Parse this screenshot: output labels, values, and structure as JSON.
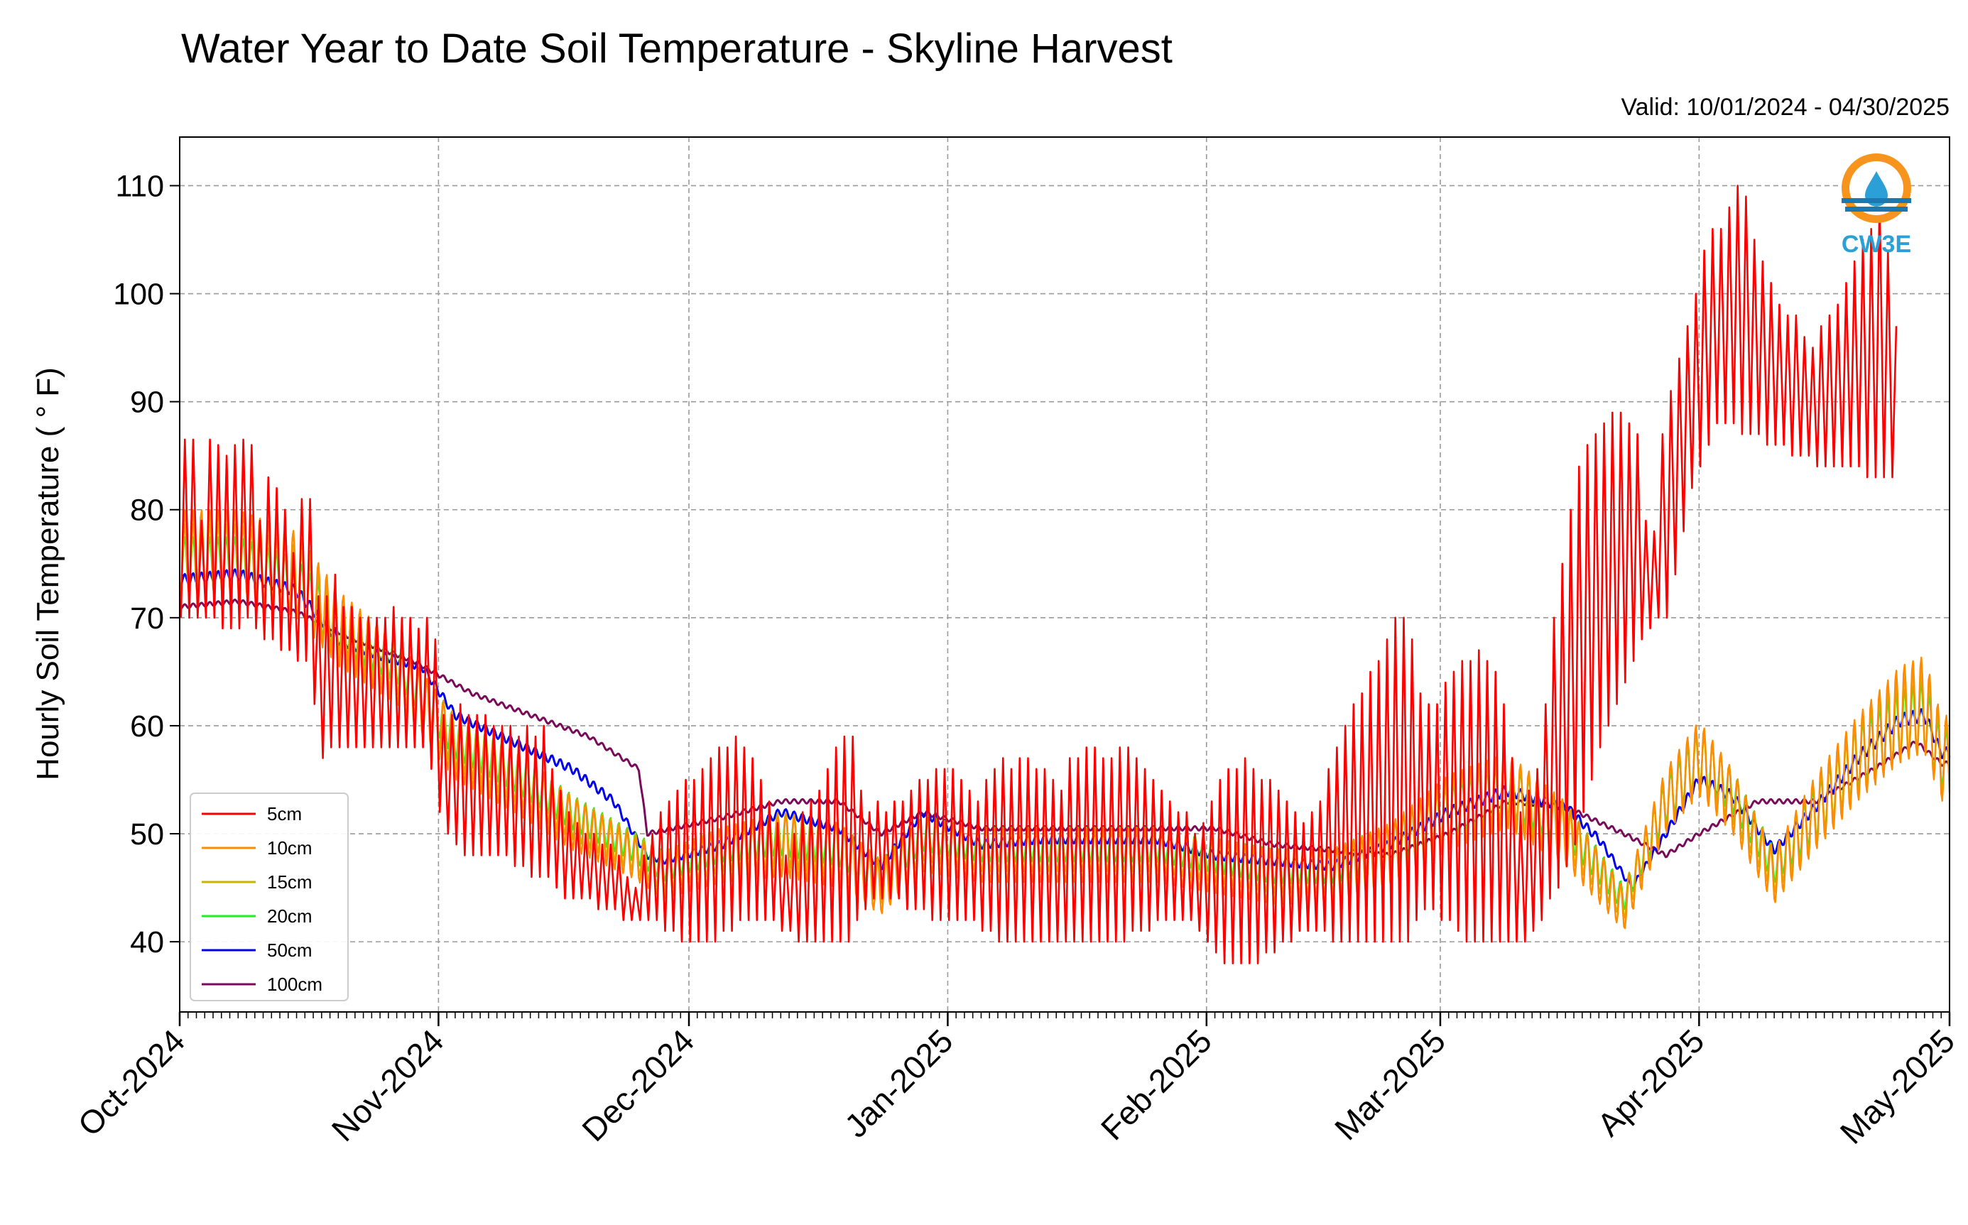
{
  "chart_data": {
    "type": "line",
    "title": "Water Year to Date Soil Temperature - Skyline Harvest",
    "subtitle": "Valid: 10/01/2024 - 04/30/2025",
    "xlabel": "",
    "ylabel": "Hourly Soil Temperature ( ° F)",
    "xlim": [
      "2024-10-01",
      "2025-05-01"
    ],
    "ylim": [
      33.5,
      114.5
    ],
    "yticks": [
      40,
      50,
      60,
      70,
      80,
      90,
      100,
      110
    ],
    "xticks": [
      {
        "date": "2024-10-01",
        "label": "Oct-2024"
      },
      {
        "date": "2024-11-01",
        "label": "Nov-2024"
      },
      {
        "date": "2024-12-01",
        "label": "Dec-2024"
      },
      {
        "date": "2025-01-01",
        "label": "Jan-2025"
      },
      {
        "date": "2025-02-01",
        "label": "Feb-2025"
      },
      {
        "date": "2025-03-01",
        "label": "Mar-2025"
      },
      {
        "date": "2025-04-01",
        "label": "Apr-2025"
      },
      {
        "date": "2025-05-01",
        "label": "May-2025"
      }
    ],
    "grid": true,
    "legend_position": "lower-left",
    "logo_text": "CW3E",
    "series": [
      {
        "name": "5cm",
        "color": "#ff0000",
        "daily_max": [
          86.5,
          86.5,
          79.0,
          86.5,
          86.0,
          85.0,
          86.0,
          86.5,
          86.0,
          79.0,
          83.0,
          82.0,
          80.0,
          76.0,
          81.0,
          81.0,
          72.0,
          72.0,
          74.0,
          71.0,
          71.0,
          70.0,
          70.0,
          70.0,
          70.0,
          71.0,
          70.0,
          70.0,
          69.0,
          70.0,
          68.0,
          61.0,
          61.0,
          62.0,
          61.0,
          61.0,
          61.0,
          60.0,
          60.0,
          60.0,
          59.0,
          60.0,
          59.0,
          60.0,
          56.0,
          54.0,
          52.0,
          51.0,
          50.0,
          50.0,
          49.0,
          49.0,
          48.0,
          46.0,
          45.0,
          48.0,
          50.0,
          52.0,
          53.0,
          54.0,
          55.0,
          55.0,
          56.0,
          57.0,
          58.0,
          58.0,
          59.0,
          58.0,
          57.0,
          55.0,
          53.0,
          51.0,
          48.0,
          50.0,
          52.0,
          53.0,
          54.0,
          56.0,
          58.0,
          59.0,
          59.0,
          54.0,
          52.0,
          53.0,
          52.0,
          53.0,
          53.0,
          54.0,
          55.0,
          55.0,
          56.0,
          56.0,
          56.0,
          55.0,
          54.0,
          53.0,
          55.0,
          56.0,
          57.0,
          56.0,
          57.0,
          57.0,
          56.0,
          56.0,
          55.0,
          54.0,
          57.0,
          57.0,
          58.0,
          58.0,
          57.0,
          57.0,
          58.0,
          58.0,
          57.0,
          56.0,
          55.0,
          54.0,
          53.0,
          52.0,
          52.0,
          50.0,
          51.0,
          53.0,
          55.0,
          56.0,
          56.0,
          57.0,
          56.0,
          55.0,
          55.0,
          54.0,
          53.0,
          52.0,
          51.0,
          52.0,
          53.0,
          56.0,
          58.0,
          60.0,
          62.0,
          63.0,
          65.0,
          66.0,
          68.0,
          70.0,
          70.0,
          68.0,
          63.0,
          62.0,
          62.0,
          64.0,
          65.0,
          66.0,
          66.0,
          67.0,
          66.0,
          65.0,
          62.0,
          57.0,
          52.0,
          54.0,
          56.0,
          62.0,
          70.0,
          75.0,
          80.0,
          84.0,
          86.0,
          87.0,
          88.0,
          89.0,
          89.0,
          88.0,
          87.0,
          79.0,
          78.0,
          87.0,
          91.0,
          94.0,
          97.0,
          100.0,
          104.0,
          106.0,
          106.0,
          108.0,
          110.0,
          109.0,
          105.0,
          103.0,
          101.0,
          99.0,
          98.0,
          98.0,
          96.0,
          95.0,
          97.0,
          98.0,
          99.0,
          101.0,
          103.0,
          105.0,
          106.0,
          109.0,
          104.0,
          97.0
        ],
        "daily_min": [
          70.0,
          70.0,
          70.0,
          70.0,
          70.0,
          69.0,
          69.0,
          69.0,
          70.0,
          69.0,
          68.0,
          68.0,
          67.0,
          67.0,
          66.0,
          66.0,
          62.0,
          57.0,
          58.0,
          58.0,
          58.0,
          58.0,
          58.0,
          58.0,
          58.0,
          58.0,
          58.0,
          58.0,
          58.0,
          58.0,
          56.0,
          52.0,
          50.0,
          49.0,
          48.0,
          48.0,
          48.0,
          48.0,
          48.0,
          48.0,
          47.0,
          47.0,
          46.0,
          46.0,
          46.0,
          45.0,
          44.0,
          44.0,
          44.0,
          44.0,
          43.0,
          43.0,
          43.0,
          42.0,
          42.0,
          42.0,
          42.0,
          42.0,
          41.0,
          41.0,
          40.0,
          40.0,
          40.0,
          40.0,
          40.0,
          41.0,
          41.0,
          42.0,
          42.0,
          42.0,
          42.0,
          42.0,
          41.0,
          41.0,
          40.0,
          40.0,
          40.0,
          40.0,
          40.0,
          40.0,
          40.0,
          42.0,
          43.0,
          44.0,
          44.0,
          44.0,
          44.0,
          43.0,
          43.0,
          43.0,
          42.0,
          42.0,
          42.0,
          42.0,
          42.0,
          42.0,
          41.0,
          41.0,
          40.0,
          40.0,
          40.0,
          40.0,
          40.0,
          40.0,
          40.0,
          40.0,
          40.0,
          40.0,
          40.0,
          40.0,
          40.0,
          40.0,
          40.0,
          40.0,
          41.0,
          41.0,
          41.0,
          42.0,
          42.0,
          42.0,
          42.0,
          42.0,
          41.0,
          40.0,
          39.0,
          38.0,
          38.0,
          38.0,
          38.0,
          38.0,
          39.0,
          39.0,
          40.0,
          40.0,
          41.0,
          41.0,
          41.0,
          41.0,
          40.0,
          40.0,
          40.0,
          40.0,
          40.0,
          40.0,
          40.0,
          40.0,
          40.0,
          40.0,
          42.0,
          43.0,
          43.0,
          42.0,
          42.0,
          41.0,
          40.0,
          40.0,
          40.0,
          40.0,
          40.0,
          40.0,
          40.0,
          40.0,
          41.0,
          42.0,
          44.0,
          45.0,
          47.0,
          49.0,
          52.0,
          55.0,
          58.0,
          60.0,
          62.0,
          64.0,
          66.0,
          68.0,
          69.0,
          70.0,
          70.0,
          74.0,
          78.0,
          82.0,
          84.0,
          86.0,
          88.0,
          88.0,
          88.0,
          87.0,
          87.0,
          87.0,
          86.0,
          86.0,
          86.0,
          85.0,
          85.0,
          85.0,
          84.0,
          84.0,
          84.0,
          84.0,
          84.0,
          84.0,
          83.0,
          83.0,
          83.0,
          83.0,
          83.0,
          83.0
        ]
      },
      {
        "name": "10cm",
        "color": "#ff8c00",
        "x": [
          "2024-10-01",
          "2024-10-08",
          "2024-10-15",
          "2024-10-20",
          "2024-10-27",
          "2024-11-03",
          "2024-11-10",
          "2024-11-17",
          "2024-11-24",
          "2024-11-28",
          "2024-12-05",
          "2024-12-12",
          "2024-12-19",
          "2024-12-24",
          "2024-12-29",
          "2025-01-05",
          "2025-01-12",
          "2025-01-19",
          "2025-01-26",
          "2025-02-02",
          "2025-02-09",
          "2025-02-16",
          "2025-02-23",
          "2025-03-02",
          "2025-03-09",
          "2025-03-16",
          "2025-03-23",
          "2025-03-28",
          "2025-04-01",
          "2025-04-05",
          "2025-04-10",
          "2025-04-15",
          "2025-04-20",
          "2025-04-25",
          "2025-04-28",
          "2025-04-30"
        ],
        "y": [
          76.0,
          76.0,
          74.0,
          69.0,
          65.0,
          58.0,
          55.0,
          51.0,
          48.0,
          46.0,
          48.0,
          49.0,
          48.0,
          45.0,
          49.0,
          48.0,
          48.0,
          48.0,
          48.0,
          47.0,
          46.0,
          46.0,
          48.0,
          52.0,
          54.0,
          50.0,
          43.0,
          53.0,
          57.0,
          53.0,
          46.0,
          52.0,
          57.0,
          61.0,
          62.0,
          57.0
        ],
        "amp": [
          4.0,
          4.0,
          4.0,
          3.5,
          3.0,
          3.0,
          3.0,
          2.5,
          2.0,
          2.0,
          2.5,
          3.0,
          3.0,
          2.5,
          2.5,
          2.5,
          2.5,
          2.5,
          2.5,
          2.5,
          2.5,
          2.5,
          3.0,
          3.5,
          3.5,
          3.0,
          2.0,
          3.0,
          3.5,
          3.0,
          2.5,
          3.5,
          4.0,
          4.5,
          4.5,
          4.0
        ]
      },
      {
        "name": "15cm",
        "color": "#c8b400",
        "x": [
          "2024-10-01",
          "2024-10-08",
          "2024-10-15",
          "2024-10-20",
          "2024-10-27",
          "2024-11-03",
          "2024-11-10",
          "2024-11-17",
          "2024-11-24",
          "2024-11-28",
          "2024-12-05",
          "2024-12-12",
          "2024-12-19",
          "2024-12-24",
          "2024-12-29",
          "2025-01-05",
          "2025-01-12",
          "2025-01-19",
          "2025-01-26",
          "2025-02-02",
          "2025-02-09",
          "2025-02-16",
          "2025-02-23",
          "2025-03-02",
          "2025-03-09",
          "2025-03-16",
          "2025-03-23",
          "2025-03-28",
          "2025-04-01",
          "2025-04-05",
          "2025-04-10",
          "2025-04-15",
          "2025-04-20",
          "2025-04-25",
          "2025-04-28",
          "2025-04-30"
        ],
        "y": [
          75.5,
          75.5,
          73.5,
          69.0,
          65.5,
          58.5,
          55.5,
          51.5,
          48.5,
          46.5,
          48.5,
          49.5,
          48.5,
          45.5,
          49.5,
          48.5,
          48.5,
          48.5,
          48.5,
          47.5,
          46.5,
          46.5,
          48.5,
          52.0,
          54.0,
          50.5,
          43.5,
          53.0,
          57.0,
          53.5,
          46.5,
          52.0,
          57.0,
          60.5,
          61.5,
          57.0
        ],
        "amp": [
          3.2,
          3.2,
          3.2,
          2.8,
          2.5,
          2.5,
          2.5,
          2.0,
          1.8,
          1.8,
          2.0,
          2.5,
          2.5,
          2.0,
          2.0,
          2.0,
          2.0,
          2.0,
          2.0,
          2.0,
          2.0,
          2.0,
          2.5,
          3.0,
          3.0,
          2.5,
          1.5,
          2.5,
          3.0,
          2.5,
          2.0,
          3.0,
          3.5,
          3.8,
          3.8,
          3.2
        ]
      },
      {
        "name": "20cm",
        "color": "#22ee22",
        "x": [
          "2024-10-01",
          "2024-10-08",
          "2024-10-15",
          "2024-10-20",
          "2024-10-27",
          "2024-11-03",
          "2024-11-10",
          "2024-11-17",
          "2024-11-24",
          "2024-11-28",
          "2024-12-05",
          "2024-12-12",
          "2024-12-19",
          "2024-12-24",
          "2024-12-29",
          "2025-01-05",
          "2025-01-12",
          "2025-01-19",
          "2025-01-26",
          "2025-02-02",
          "2025-02-09",
          "2025-02-16",
          "2025-02-23",
          "2025-03-02",
          "2025-03-09",
          "2025-03-16",
          "2025-03-23",
          "2025-03-28",
          "2025-04-01",
          "2025-04-05",
          "2025-04-10",
          "2025-04-15",
          "2025-04-20",
          "2025-04-25",
          "2025-04-28",
          "2025-04-30"
        ],
        "y": [
          75.0,
          75.0,
          73.0,
          69.0,
          66.0,
          59.0,
          56.0,
          52.0,
          49.0,
          47.0,
          49.0,
          50.0,
          49.0,
          46.0,
          50.0,
          49.0,
          49.0,
          49.0,
          49.0,
          48.0,
          47.0,
          47.0,
          49.0,
          52.0,
          54.0,
          51.0,
          44.0,
          53.0,
          57.0,
          54.0,
          47.0,
          52.0,
          57.0,
          60.0,
          61.0,
          57.0
        ],
        "amp": [
          2.5,
          2.5,
          2.5,
          2.2,
          2.0,
          2.0,
          2.0,
          1.6,
          1.4,
          1.4,
          1.6,
          2.0,
          2.0,
          1.6,
          1.6,
          1.6,
          1.6,
          1.6,
          1.6,
          1.6,
          1.6,
          1.6,
          2.0,
          2.5,
          2.5,
          2.0,
          1.2,
          2.0,
          2.5,
          2.0,
          1.6,
          2.5,
          3.0,
          3.2,
          3.2,
          2.6
        ]
      },
      {
        "name": "50cm",
        "color": "#0000ee",
        "x": [
          "2024-10-01",
          "2024-10-08",
          "2024-10-15",
          "2024-10-20",
          "2024-10-25",
          "2024-10-30",
          "2024-11-03",
          "2024-11-10",
          "2024-11-17",
          "2024-11-22",
          "2024-11-26",
          "2024-11-28",
          "2024-12-05",
          "2024-12-12",
          "2024-12-19",
          "2024-12-24",
          "2024-12-29",
          "2025-01-05",
          "2025-01-12",
          "2025-01-19",
          "2025-01-26",
          "2025-02-02",
          "2025-02-09",
          "2025-02-16",
          "2025-02-23",
          "2025-03-02",
          "2025-03-09",
          "2025-03-16",
          "2025-03-20",
          "2025-03-24",
          "2025-03-28",
          "2025-04-01",
          "2025-04-05",
          "2025-04-10",
          "2025-04-15",
          "2025-04-20",
          "2025-04-25",
          "2025-04-28",
          "2025-04-30"
        ],
        "y": [
          73.5,
          74.0,
          72.5,
          68.0,
          66.5,
          65.5,
          61.0,
          58.5,
          56.0,
          53.0,
          48.0,
          47.5,
          49.0,
          52.0,
          50.5,
          47.0,
          52.0,
          49.0,
          49.5,
          49.5,
          49.5,
          48.0,
          47.5,
          47.0,
          49.0,
          52.0,
          54.0,
          52.5,
          49.5,
          45.0,
          50.0,
          55.0,
          53.5,
          48.5,
          52.5,
          57.0,
          60.5,
          61.0,
          57.5
        ],
        "amp": [
          0.5,
          0.5,
          0.5,
          0.5,
          0.4,
          0.4,
          0.4,
          0.4,
          0.4,
          0.4,
          0.3,
          0.3,
          0.4,
          0.4,
          0.4,
          0.4,
          0.4,
          0.4,
          0.4,
          0.4,
          0.4,
          0.4,
          0.4,
          0.4,
          0.4,
          0.5,
          0.5,
          0.4,
          0.4,
          0.3,
          0.4,
          0.5,
          0.5,
          0.4,
          0.5,
          0.6,
          0.6,
          0.6,
          0.5
        ]
      },
      {
        "name": "100cm",
        "color": "#7a0a5a",
        "x": [
          "2024-10-01",
          "2024-10-08",
          "2024-10-15",
          "2024-10-22",
          "2024-10-29",
          "2024-11-05",
          "2024-11-12",
          "2024-11-19",
          "2024-11-25",
          "2024-11-26",
          "2024-12-05",
          "2024-12-12",
          "2024-12-19",
          "2024-12-24",
          "2024-12-29",
          "2025-01-05",
          "2025-01-12",
          "2025-01-19",
          "2025-01-26",
          "2025-02-02",
          "2025-02-09",
          "2025-02-16",
          "2025-02-23",
          "2025-03-02",
          "2025-03-09",
          "2025-03-16",
          "2025-03-23",
          "2025-03-28",
          "2025-04-01",
          "2025-04-08",
          "2025-04-15",
          "2025-04-22",
          "2025-04-27",
          "2025-04-30"
        ],
        "y": [
          71.0,
          71.5,
          70.5,
          68.0,
          66.0,
          63.0,
          61.0,
          59.0,
          56.0,
          50.0,
          51.5,
          53.0,
          53.0,
          50.0,
          52.0,
          50.5,
          50.5,
          50.5,
          50.5,
          50.5,
          49.0,
          48.5,
          48.0,
          50.0,
          53.0,
          52.5,
          50.0,
          48.0,
          50.0,
          53.0,
          53.0,
          56.0,
          58.5,
          56.5
        ],
        "amp": [
          0.2,
          0.2,
          0.2,
          0.2,
          0.2,
          0.2,
          0.2,
          0.2,
          0.2,
          0.2,
          0.2,
          0.2,
          0.2,
          0.2,
          0.2,
          0.2,
          0.2,
          0.2,
          0.2,
          0.2,
          0.2,
          0.2,
          0.2,
          0.2,
          0.2,
          0.2,
          0.2,
          0.2,
          0.2,
          0.2,
          0.2,
          0.2,
          0.2,
          0.2
        ]
      }
    ]
  }
}
